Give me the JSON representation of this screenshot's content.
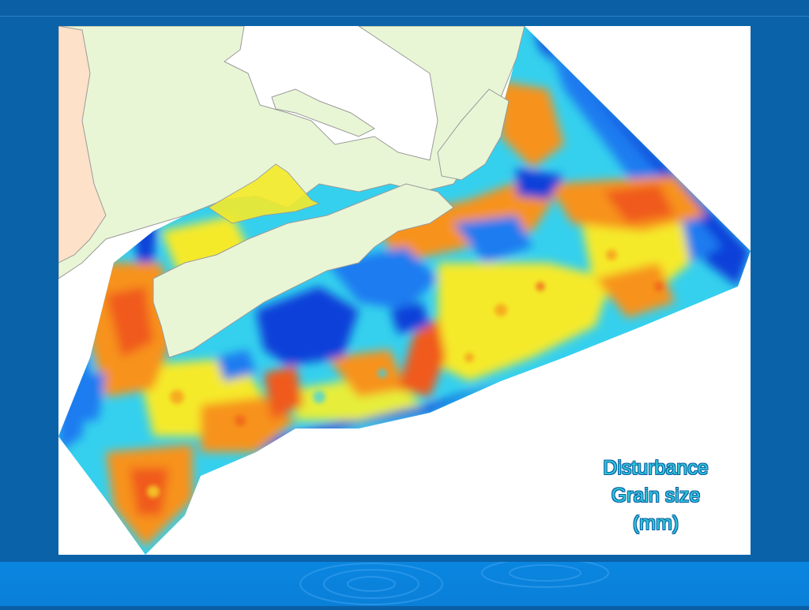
{
  "slide": {
    "legend": {
      "line1": "Disturbance",
      "line2": "Grain size",
      "line3": "(mm)"
    }
  },
  "map": {
    "region_colors": {
      "land_canada": "#e9f6d6",
      "land_usa": "#fde1c8",
      "coastline": "#9a9a9a",
      "deep_blue": "#0a3fd9",
      "mid_blue": "#1e7cf0",
      "cyan": "#35d0ee",
      "yellow": "#f5ea2a",
      "orange": "#f7931e",
      "red_orange": "#f05a1e"
    }
  }
}
